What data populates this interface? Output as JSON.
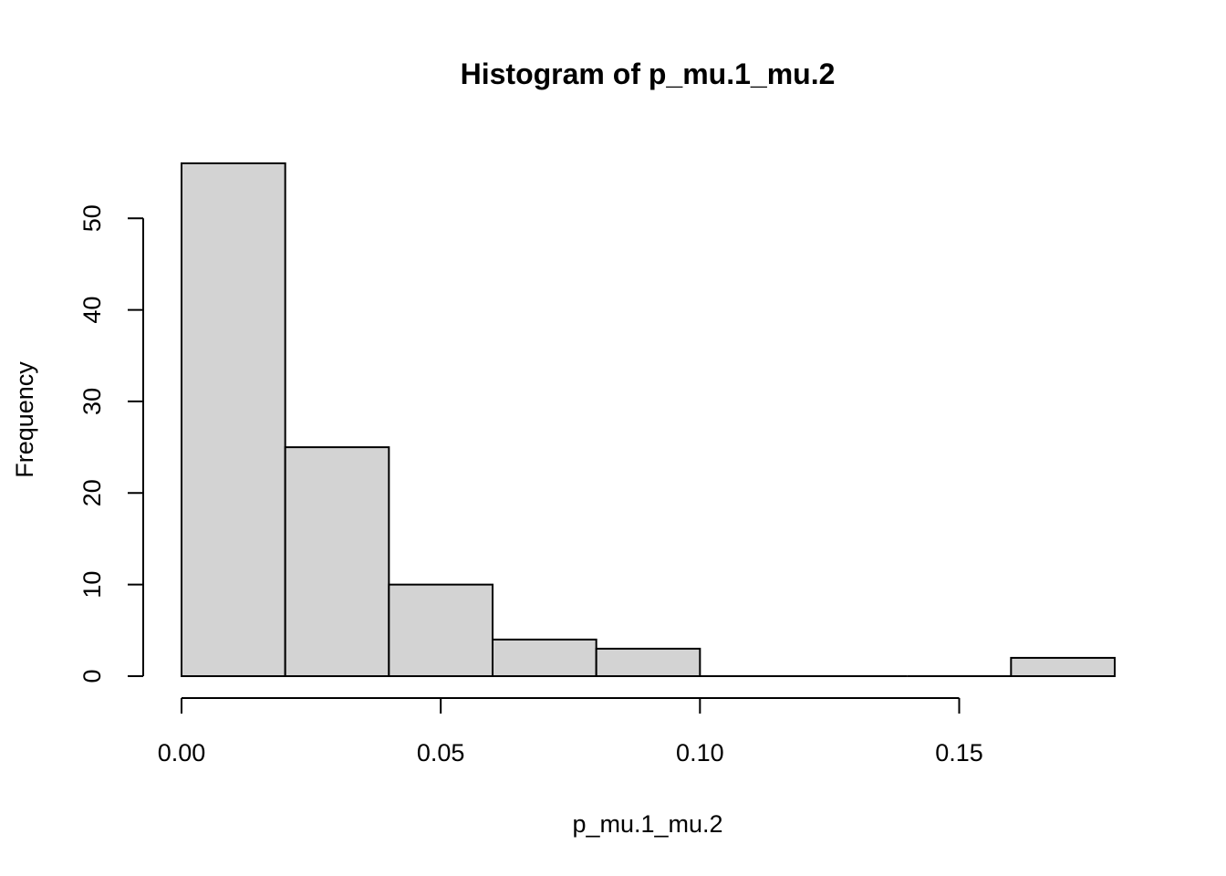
{
  "chart_data": {
    "type": "bar",
    "title": "Histogram of p_mu.1_mu.2",
    "xlabel": "p_mu.1_mu.2",
    "ylabel": "Frequency",
    "bins": [
      {
        "start": 0.0,
        "end": 0.02,
        "count": 56
      },
      {
        "start": 0.02,
        "end": 0.04,
        "count": 25
      },
      {
        "start": 0.04,
        "end": 0.06,
        "count": 10
      },
      {
        "start": 0.06,
        "end": 0.08,
        "count": 4
      },
      {
        "start": 0.08,
        "end": 0.1,
        "count": 3
      },
      {
        "start": 0.1,
        "end": 0.12,
        "count": 0
      },
      {
        "start": 0.12,
        "end": 0.14,
        "count": 0
      },
      {
        "start": 0.14,
        "end": 0.16,
        "count": 0
      },
      {
        "start": 0.16,
        "end": 0.18,
        "count": 2
      }
    ],
    "x_ticks": [
      {
        "value": 0.0,
        "label": "0.00"
      },
      {
        "value": 0.05,
        "label": "0.05"
      },
      {
        "value": 0.1,
        "label": "0.10"
      },
      {
        "value": 0.15,
        "label": "0.15"
      }
    ],
    "y_ticks": [
      {
        "value": 0,
        "label": "0"
      },
      {
        "value": 10,
        "label": "10"
      },
      {
        "value": 20,
        "label": "20"
      },
      {
        "value": 30,
        "label": "30"
      },
      {
        "value": 40,
        "label": "40"
      },
      {
        "value": 50,
        "label": "50"
      }
    ],
    "xlim": [
      0.0,
      0.18
    ],
    "ylim": [
      0,
      56
    ],
    "grid": false,
    "legend": "none",
    "colors": {
      "bar_fill": "#d3d3d3",
      "bar_stroke": "#000000"
    }
  }
}
